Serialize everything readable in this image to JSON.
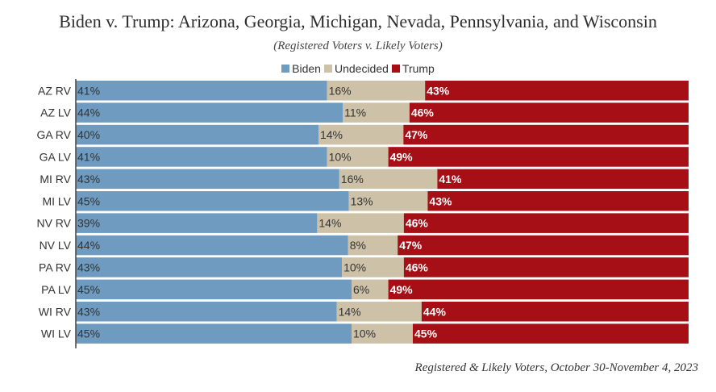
{
  "title": "Biden v. Trump: Arizona, Georgia, Michigan, Nevada, Pennsylvania, and Wisconsin",
  "subtitle": "(Registered Voters v. Likely Voters)",
  "footer": "Registered & Likely Voters, October 30-November 4, 2023",
  "colors": {
    "Biden": "#6e9bbf",
    "Undecided": "#cdc1a7",
    "Trump": "#a50f15"
  },
  "chart_data": {
    "type": "bar",
    "orientation": "horizontal",
    "stacked": true,
    "title": "Biden v. Trump: Arizona, Georgia, Michigan, Nevada, Pennsylvania, and Wisconsin",
    "subtitle": "(Registered Voters v. Likely Voters)",
    "legend_position": "top",
    "categories": [
      "AZ RV",
      "AZ LV",
      "GA RV",
      "GA LV",
      "MI RV",
      "MI LV",
      "NV RV",
      "NV LV",
      "PA RV",
      "PA LV",
      "WI RV",
      "WI LV"
    ],
    "series": [
      {
        "name": "Biden",
        "values": [
          41,
          44,
          40,
          41,
          43,
          45,
          39,
          44,
          43,
          45,
          43,
          45
        ]
      },
      {
        "name": "Undecided",
        "values": [
          16,
          11,
          14,
          10,
          16,
          13,
          14,
          8,
          10,
          6,
          14,
          10
        ]
      },
      {
        "name": "Trump",
        "values": [
          43,
          46,
          47,
          49,
          41,
          43,
          46,
          47,
          46,
          49,
          44,
          45
        ]
      }
    ],
    "value_suffix": "%"
  }
}
